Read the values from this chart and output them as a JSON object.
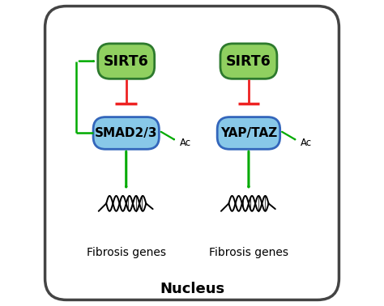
{
  "background_color": "#ffffff",
  "border_color": "#444444",
  "green_box_color": "#90d060",
  "green_box_edge": "#2d7a2d",
  "blue_box_color": "#88c8e8",
  "blue_box_edge": "#3366bb",
  "arrow_green": "#00aa00",
  "arrow_red": "#ee2222",
  "text_color": "#000000",
  "nucleus_label": "Nucleus",
  "fibrosis_label": "Fibrosis genes",
  "ac_label": "Ac",
  "left_top_label": "SIRT6",
  "right_top_label": "SIRT6",
  "left_mid_label": "SMAD2/3",
  "right_mid_label": "YAP/TAZ",
  "figsize": [
    4.74,
    3.78
  ],
  "dpi": 100
}
